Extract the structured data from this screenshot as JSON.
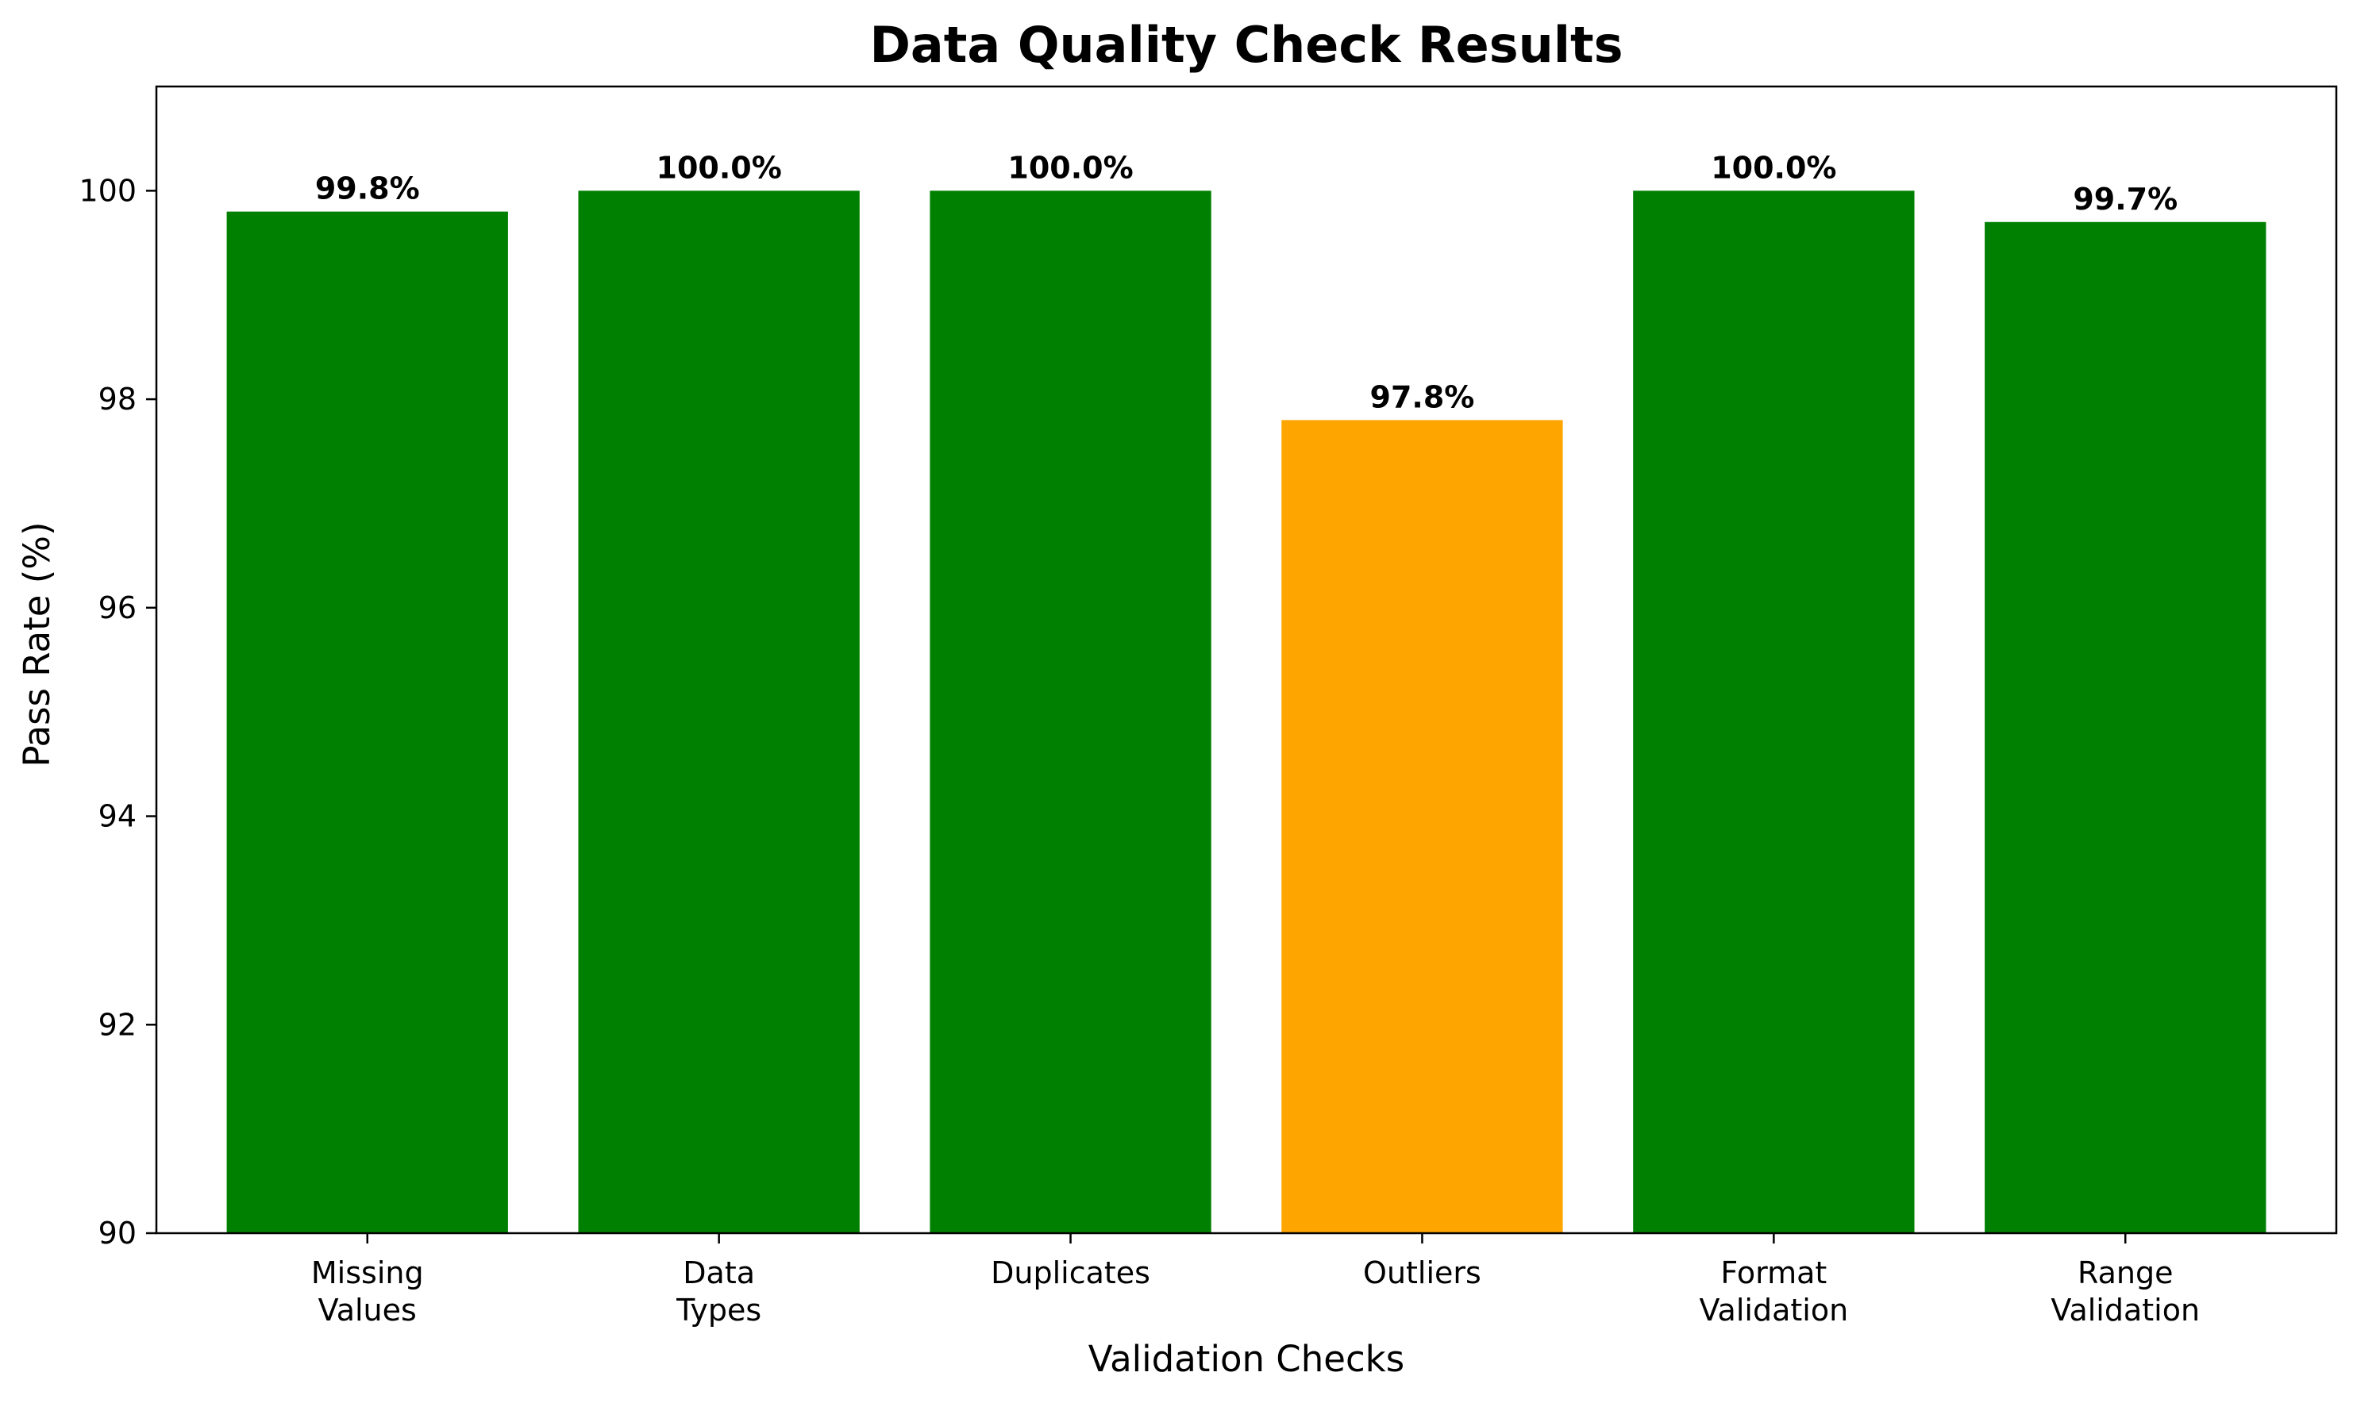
{
  "chart_data": {
    "type": "bar",
    "title": "Data Quality Check Results",
    "xlabel": "Validation Checks",
    "ylabel": "Pass Rate (%)",
    "categories": [
      [
        "Missing",
        "Values"
      ],
      [
        "Data",
        "Types"
      ],
      [
        "Duplicates"
      ],
      [
        "Outliers"
      ],
      [
        "Format",
        "Validation"
      ],
      [
        "Range",
        "Validation"
      ]
    ],
    "values": [
      99.8,
      100.0,
      100.0,
      97.8,
      100.0,
      99.7
    ],
    "value_labels": [
      "99.8%",
      "100.0%",
      "100.0%",
      "97.8%",
      "100.0%",
      "99.7%"
    ],
    "bar_colors": [
      "#008000",
      "#008000",
      "#008000",
      "#ffa500",
      "#008000",
      "#008000"
    ],
    "ylim": [
      90,
      101
    ],
    "yticks": [
      90,
      92,
      94,
      96,
      98,
      100
    ],
    "grid": false,
    "legend": "none"
  }
}
